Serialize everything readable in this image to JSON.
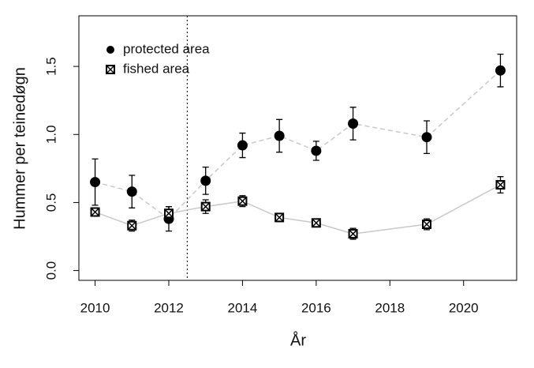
{
  "chart_data": {
    "type": "errorline",
    "x_label": "År",
    "y_label": "Hummer per teinedøgn",
    "x": [
      2010,
      2011,
      2012,
      2013,
      2014,
      2015,
      2016,
      2017,
      2019,
      2021
    ],
    "series": [
      {
        "name": "protected area",
        "color": "#000000",
        "line_color": "#c8c8c8",
        "line_style": "dashed",
        "marker": "circle",
        "values": [
          0.65,
          0.58,
          0.38,
          0.66,
          0.92,
          0.99,
          0.88,
          1.08,
          0.98,
          1.47
        ],
        "errors": [
          0.17,
          0.12,
          0.09,
          0.1,
          0.09,
          0.12,
          0.07,
          0.12,
          0.12,
          0.12
        ]
      },
      {
        "name": "fished area",
        "color": "#000000",
        "line_color": "#c8c8c8",
        "line_style": "solid",
        "marker": "crossed-square",
        "values": [
          0.43,
          0.33,
          0.42,
          0.47,
          0.51,
          0.39,
          0.35,
          0.27,
          0.34,
          0.63
        ],
        "errors": [
          0.03,
          0.04,
          0.05,
          0.05,
          0.04,
          0.03,
          0.02,
          0.04,
          0.04,
          0.06
        ]
      }
    ],
    "xlim": [
      2009.56,
      2021.44
    ],
    "ylim": [
      -0.072,
      1.872
    ],
    "xticks": [
      2010,
      2012,
      2014,
      2016,
      2018,
      2020
    ],
    "yticks": [
      {
        "value": 0,
        "label": "0.0"
      },
      0.5,
      {
        "value": 1,
        "label": "1.0"
      },
      1.5
    ],
    "vline": 2012.5,
    "legend": "top-left"
  }
}
